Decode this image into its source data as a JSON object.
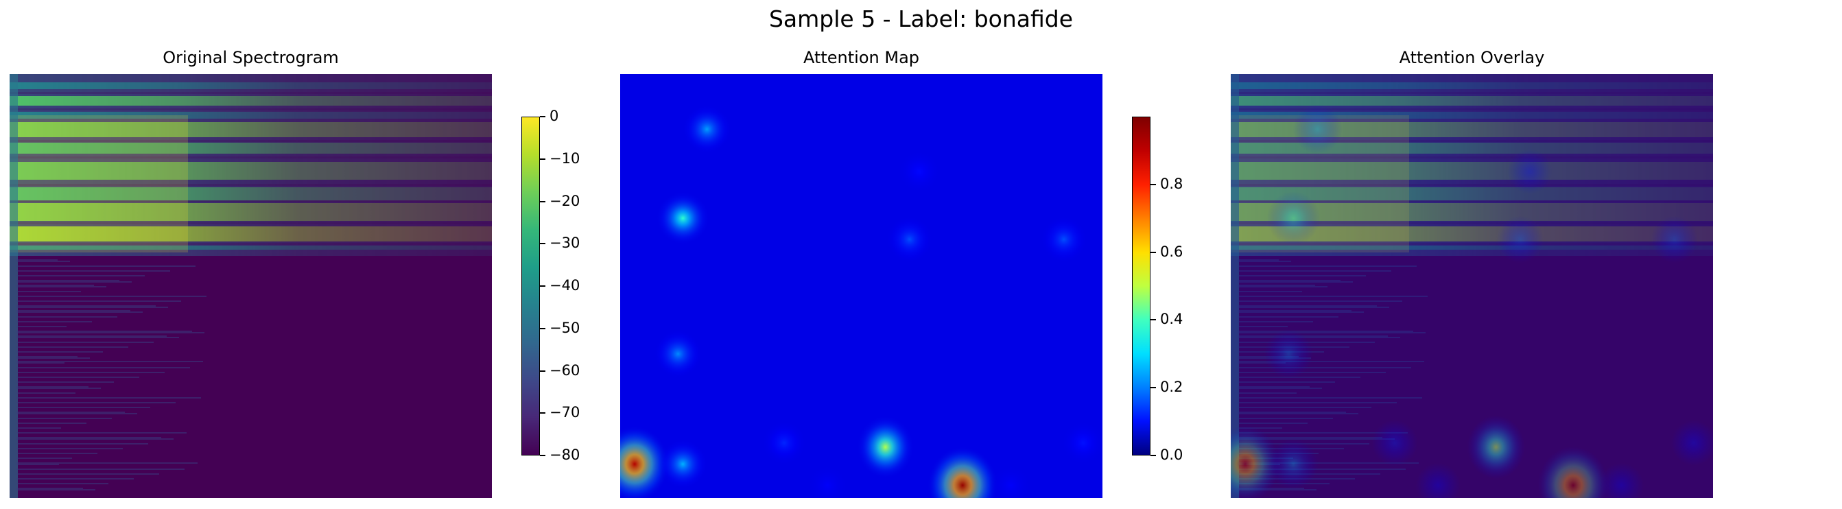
{
  "suptitle": "Sample 5 - Label: bonafide",
  "colors": {
    "viridis_dark": "#440154",
    "viridis_mid": "#21908d",
    "viridis_bright": "#fde725",
    "jet_low": "#00007f",
    "jet_high": "#7f0000"
  },
  "chart_data": [
    {
      "type": "heatmap",
      "title": "Original Spectrogram",
      "colormap": "viridis",
      "colorbar": {
        "range": [
          -80,
          0
        ],
        "ticks": [
          0,
          -10,
          -20,
          -30,
          -40,
          -50,
          -60,
          -70,
          -80
        ],
        "tick_labels": [
          "0",
          "−10",
          "−20",
          "−30",
          "−40",
          "−50",
          "−60",
          "−70",
          "−80"
        ]
      },
      "axes": "off",
      "description_values": {
        "harmonic_bands_db": [
          -18,
          -22,
          -20,
          -25,
          -22,
          -15
        ],
        "background_db": -80
      }
    },
    {
      "type": "heatmap",
      "title": "Attention Map",
      "colormap": "jet",
      "colorbar": {
        "range": [
          0.0,
          1.0
        ],
        "ticks": [
          0.0,
          0.2,
          0.4,
          0.6,
          0.8
        ],
        "tick_labels": [
          "0.0",
          "0.2",
          "0.4",
          "0.6",
          "0.8"
        ]
      },
      "axes": "off",
      "peaks": [
        {
          "col": 0.03,
          "row": 0.92,
          "value": 0.95
        },
        {
          "col": 0.71,
          "row": 0.97,
          "value": 0.98
        },
        {
          "col": 0.55,
          "row": 0.88,
          "value": 0.55
        },
        {
          "col": 0.13,
          "row": 0.34,
          "value": 0.42
        },
        {
          "col": 0.13,
          "row": 0.92,
          "value": 0.3
        },
        {
          "col": 0.18,
          "row": 0.13,
          "value": 0.28
        },
        {
          "col": 0.12,
          "row": 0.66,
          "value": 0.26
        },
        {
          "col": 0.6,
          "row": 0.39,
          "value": 0.2
        },
        {
          "col": 0.92,
          "row": 0.39,
          "value": 0.2
        },
        {
          "col": 0.34,
          "row": 0.87,
          "value": 0.16
        },
        {
          "col": 0.96,
          "row": 0.87,
          "value": 0.14
        },
        {
          "col": 0.62,
          "row": 0.23,
          "value": 0.13
        },
        {
          "col": 0.43,
          "row": 0.97,
          "value": 0.12
        },
        {
          "col": 0.81,
          "row": 0.97,
          "value": 0.12
        }
      ],
      "background_value": 0.1
    },
    {
      "type": "heatmap",
      "title": "Attention Overlay",
      "colormap": "viridis + jet overlay",
      "axes": "off"
    }
  ]
}
